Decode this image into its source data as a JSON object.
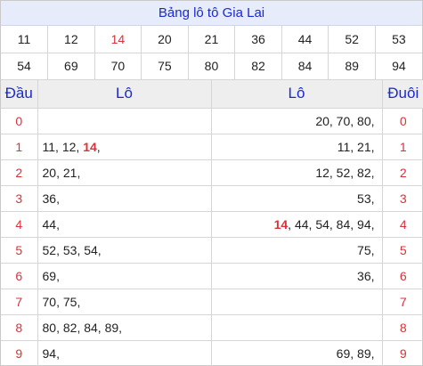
{
  "title": "Bảng lô tô Gia Lai",
  "numbers": [
    {
      "v": "11",
      "hl": false
    },
    {
      "v": "12",
      "hl": false
    },
    {
      "v": "14",
      "hl": true
    },
    {
      "v": "20",
      "hl": false
    },
    {
      "v": "21",
      "hl": false
    },
    {
      "v": "36",
      "hl": false
    },
    {
      "v": "44",
      "hl": false
    },
    {
      "v": "52",
      "hl": false
    },
    {
      "v": "53",
      "hl": false
    },
    {
      "v": "54",
      "hl": false
    },
    {
      "v": "69",
      "hl": false
    },
    {
      "v": "70",
      "hl": false
    },
    {
      "v": "75",
      "hl": false
    },
    {
      "v": "80",
      "hl": false
    },
    {
      "v": "82",
      "hl": false
    },
    {
      "v": "84",
      "hl": false
    },
    {
      "v": "89",
      "hl": false
    },
    {
      "v": "94",
      "hl": false
    }
  ],
  "headers": {
    "dau": "Đầu",
    "lo_left": "Lô",
    "lo_right": "Lô",
    "duoi": "Đuôi"
  },
  "rows": [
    {
      "dau": "0",
      "left": [],
      "right": [
        "20",
        "70",
        "80"
      ],
      "duoi": "0"
    },
    {
      "dau": "1",
      "left": [
        "11",
        "12",
        "14"
      ],
      "right": [
        "11",
        "21"
      ],
      "duoi": "1"
    },
    {
      "dau": "2",
      "left": [
        "20",
        "21"
      ],
      "right": [
        "12",
        "52",
        "82"
      ],
      "duoi": "2"
    },
    {
      "dau": "3",
      "left": [
        "36"
      ],
      "right": [
        "53"
      ],
      "duoi": "3"
    },
    {
      "dau": "4",
      "left": [
        "44"
      ],
      "right": [
        "14",
        "44",
        "54",
        "84",
        "94"
      ],
      "duoi": "4"
    },
    {
      "dau": "5",
      "left": [
        "52",
        "53",
        "54"
      ],
      "right": [
        "75"
      ],
      "duoi": "5"
    },
    {
      "dau": "6",
      "left": [
        "69"
      ],
      "right": [
        "36"
      ],
      "duoi": "6"
    },
    {
      "dau": "7",
      "left": [
        "70",
        "75"
      ],
      "right": [],
      "duoi": "7"
    },
    {
      "dau": "8",
      "left": [
        "80",
        "82",
        "84",
        "89"
      ],
      "right": [],
      "duoi": "8"
    },
    {
      "dau": "9",
      "left": [
        "94"
      ],
      "right": [
        "69",
        "89"
      ],
      "duoi": "9"
    }
  ],
  "highlight_values": [
    "14"
  ],
  "colors": {
    "accent": "#1a28d6",
    "highlight": "#d8323a",
    "title_bg": "#e6ecfa",
    "header_bg": "#eeeeee"
  }
}
